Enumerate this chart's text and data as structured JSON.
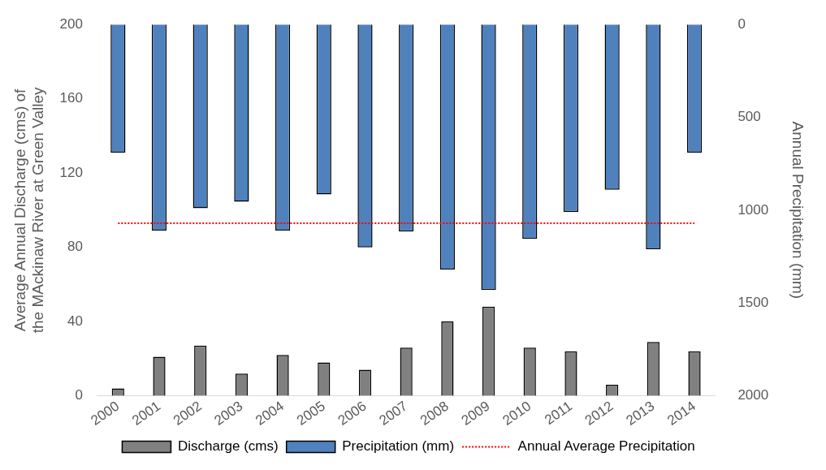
{
  "chart_data": {
    "type": "bar",
    "ylabel": "Average Annual Discharge (cms) of the MAckinaw River at Green Valley",
    "y2label": "Annual Precipitation (mm)",
    "categories": [
      "2000",
      "2001",
      "2002",
      "2003",
      "2004",
      "2005",
      "2006",
      "2007",
      "2008",
      "2009",
      "2010",
      "2011",
      "2012",
      "2013",
      "2014"
    ],
    "series": [
      {
        "name": "Discharge (cms)",
        "color": "#808080",
        "values": [
          4,
          21,
          27,
          12,
          22,
          18,
          14,
          26,
          40,
          48,
          26,
          24,
          6,
          29,
          24
        ]
      },
      {
        "name": "Precipitation (mm)",
        "color": "#4f81bd",
        "axis": "y2",
        "values": [
          690,
          1110,
          990,
          955,
          1110,
          915,
          1200,
          1115,
          1320,
          1430,
          1155,
          1010,
          890,
          1210,
          690
        ]
      }
    ],
    "ylim": [
      0,
      200
    ],
    "yticks": [
      0,
      40,
      80,
      120,
      160,
      200
    ],
    "y2lim": [
      2000,
      0
    ],
    "y2ticks": [
      0,
      500,
      1000,
      1500,
      2000
    ],
    "ref_lines": [
      {
        "axis": "y2",
        "value": 1070,
        "label": "Annual Average Precipitation",
        "color": "#ff0000",
        "line_style": "dotted"
      }
    ],
    "grid": false,
    "legend": "bottom"
  }
}
